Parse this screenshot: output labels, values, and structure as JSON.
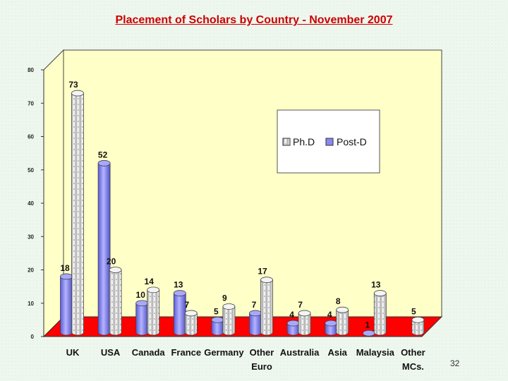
{
  "page_number": "32",
  "chart_data": {
    "type": "bar",
    "title": "Placement of Scholars by Country - November 2007",
    "xlabel": "",
    "ylabel": "",
    "ylim": [
      0,
      80
    ],
    "yticks": [
      0,
      10,
      20,
      30,
      40,
      50,
      60,
      70,
      80
    ],
    "grid": false,
    "legend": "right",
    "categories": [
      [
        "UK"
      ],
      [
        "USA"
      ],
      [
        "Canada"
      ],
      [
        "France"
      ],
      [
        "Germany"
      ],
      [
        "Other",
        "Euro"
      ],
      [
        "Australia"
      ],
      [
        "Asia"
      ],
      [
        "Malaysia"
      ],
      [
        "Other",
        "MCs."
      ]
    ],
    "series": [
      {
        "name": "Ph.D",
        "values": [
          73,
          20,
          14,
          7,
          9,
          17,
          7,
          8,
          13,
          5
        ],
        "labels": [
          "73",
          "20",
          "14",
          "7",
          "9",
          "17",
          "7",
          "8",
          "13",
          "5"
        ]
      },
      {
        "name": "Post-D",
        "values": [
          18,
          52,
          10,
          13,
          5,
          7,
          4,
          4,
          1,
          null
        ],
        "labels": [
          "18",
          "52",
          "10",
          "13",
          "5",
          "7",
          "4",
          "4",
          "1",
          ""
        ]
      }
    ],
    "colors": {
      "phd": "#e8e8e8",
      "postd": "#8888f0",
      "plot_background": "#ffffc8",
      "floor": "#ff0000"
    }
  }
}
